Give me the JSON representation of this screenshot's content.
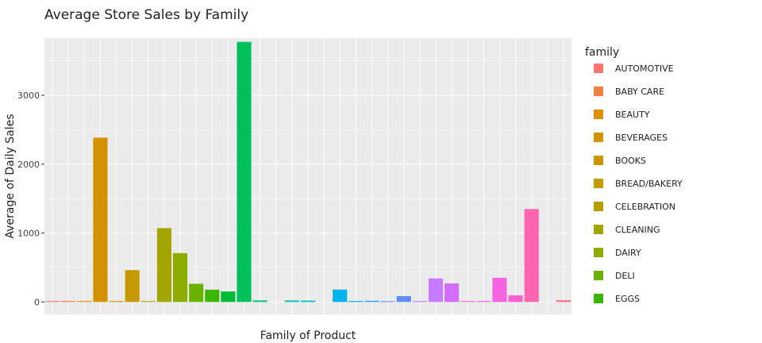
{
  "chart_data": {
    "type": "bar",
    "title": "Average Store Sales by Family",
    "xlabel": "Family of Product",
    "ylabel": "Average of Daily Sales",
    "ylim": [
      -180,
      3830
    ],
    "yticks": [
      0,
      1000,
      2000,
      3000
    ],
    "grid": true,
    "legend": {
      "title": "family",
      "placement": "right",
      "entries": [
        {
          "name": "AUTOMOTIVE",
          "color": "#F8766D"
        },
        {
          "name": "BABY CARE",
          "color": "#EE8044"
        },
        {
          "name": "BEAUTY",
          "color": "#DE8C00"
        },
        {
          "name": "BEVERAGES",
          "color": "#D39200"
        },
        {
          "name": "BOOKS",
          "color": "#CD9600"
        },
        {
          "name": "BREAD/BAKERY",
          "color": "#C49A00"
        },
        {
          "name": "CELEBRATION",
          "color": "#B4A000"
        },
        {
          "name": "CLEANING",
          "color": "#A3A500"
        },
        {
          "name": "DAIRY",
          "color": "#8EAB00"
        },
        {
          "name": "DELI",
          "color": "#6BB100"
        },
        {
          "name": "EGGS",
          "color": "#39B600"
        }
      ]
    },
    "values": [
      6.5,
      0.1,
      3.7,
      2385,
      0.07,
      463,
      8.4,
      1072,
      709,
      265,
      179,
      153,
      3776,
      23,
      0,
      23,
      21,
      0,
      181,
      7.6,
      18.6,
      11,
      85,
      2,
      342,
      270,
      5,
      9,
      351,
      97,
      1349,
      0,
      26
    ],
    "colors": [
      "#F8766D",
      "#EE8044",
      "#DE8C00",
      "#D39200",
      "#CD9600",
      "#C49A00",
      "#B4A000",
      "#A3A500",
      "#8EAB00",
      "#6BB100",
      "#39B600",
      "#00BA38",
      "#00C05A",
      "#00BF7D",
      "#00C097",
      "#00C0AF",
      "#00BFC4",
      "#00BBDA",
      "#00B4EF",
      "#00A9FF",
      "#35A2FF",
      "#619CFF",
      "#5C8DFA",
      "#AC88FF",
      "#C77CFF",
      "#D26EF8",
      "#E76BF3",
      "#F162E8",
      "#F564E3",
      "#FD61D1",
      "#FF64B0",
      "#FF6C91",
      "#FF6F80"
    ]
  }
}
